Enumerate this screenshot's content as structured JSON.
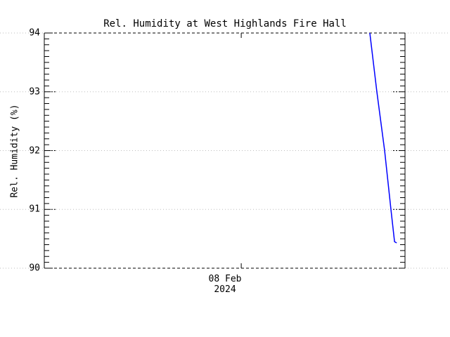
{
  "chart_data": {
    "type": "line",
    "title": "Rel. Humidity at West Highlands Fire Hall",
    "ylabel": "Rel. Humidity (%)",
    "xlabel": "",
    "ylim": [
      90,
      94
    ],
    "yticks": [
      90,
      91,
      92,
      93,
      94
    ],
    "ytick_minor_interval": 0.1,
    "xticks": [
      {
        "axis_frac": 0.546,
        "label_axis_frac": 0.501,
        "lines": [
          "08 Feb",
          "2024"
        ]
      }
    ],
    "grid": {
      "horizontal_major": true,
      "style": "dotted",
      "color": "#bdbdbd"
    },
    "axis_color": "#000000",
    "background_color": "#ffffff",
    "legend_position": "none",
    "series": [
      {
        "name": "Rel. Humidity",
        "color": "#0000ff",
        "points": [
          {
            "x_frac": 0.9025,
            "y": 94.0
          },
          {
            "x_frac": 0.922,
            "y": 93.0
          },
          {
            "x_frac": 0.9435,
            "y": 92.0
          },
          {
            "x_frac": 0.961,
            "y": 91.0
          },
          {
            "x_frac": 0.971,
            "y": 90.45
          },
          {
            "x_frac": 0.977,
            "y": 90.43
          }
        ]
      }
    ]
  }
}
